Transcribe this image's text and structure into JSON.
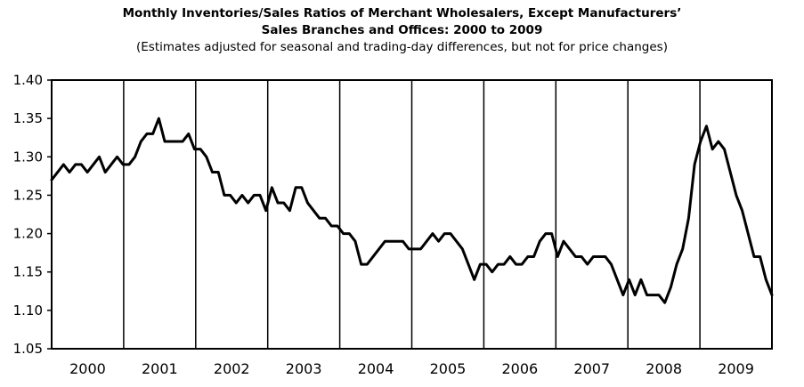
{
  "chart_data": {
    "type": "line",
    "title": "Monthly Inventories/Sales Ratios of Merchant Wholesalers, Except Manufacturers’",
    "title_line2": "Sales Branches and Offices: 2000 to 2009",
    "subtitle": "(Estimates adjusted for seasonal and trading-day differences, but not for price changes)",
    "xlabel": "",
    "ylabel": "",
    "ylim": [
      1.05,
      1.4
    ],
    "yticks": [
      "1.40",
      "1.35",
      "1.30",
      "1.25",
      "1.20",
      "1.15",
      "1.10",
      "1.05"
    ],
    "years": [
      "2000",
      "2001",
      "2002",
      "2003",
      "2004",
      "2005",
      "2006",
      "2007",
      "2008",
      "2009"
    ],
    "grid": "vertical year separators only",
    "line_color": "#000000",
    "series": [
      {
        "values": [
          1.27,
          1.28,
          1.29,
          1.28,
          1.29,
          1.29,
          1.28,
          1.29,
          1.3,
          1.28,
          1.29,
          1.3,
          1.29,
          1.29,
          1.3,
          1.32,
          1.33,
          1.33,
          1.35,
          1.32,
          1.32,
          1.32,
          1.32,
          1.33,
          1.31,
          1.31,
          1.3,
          1.28,
          1.28,
          1.25,
          1.25,
          1.24,
          1.25,
          1.24,
          1.25,
          1.25,
          1.23,
          1.26,
          1.24,
          1.24,
          1.23,
          1.26,
          1.26,
          1.24,
          1.23,
          1.22,
          1.22,
          1.21,
          1.21,
          1.2,
          1.2,
          1.19,
          1.16,
          1.16,
          1.17,
          1.18,
          1.19,
          1.19,
          1.19,
          1.19,
          1.18,
          1.18,
          1.18,
          1.19,
          1.2,
          1.19,
          1.2,
          1.2,
          1.19,
          1.18,
          1.16,
          1.14,
          1.16,
          1.16,
          1.15,
          1.16,
          1.16,
          1.17,
          1.16,
          1.16,
          1.17,
          1.17,
          1.19,
          1.2,
          1.2,
          1.17,
          1.19,
          1.18,
          1.17,
          1.17,
          1.16,
          1.17,
          1.17,
          1.17,
          1.16,
          1.14,
          1.12,
          1.14,
          1.12,
          1.14,
          1.12,
          1.12,
          1.12,
          1.11,
          1.13,
          1.16,
          1.18,
          1.22,
          1.29,
          1.32,
          1.34,
          1.31,
          1.32,
          1.31,
          1.28,
          1.25,
          1.23,
          1.2,
          1.17,
          1.17,
          1.14,
          1.12
        ]
      }
    ]
  }
}
